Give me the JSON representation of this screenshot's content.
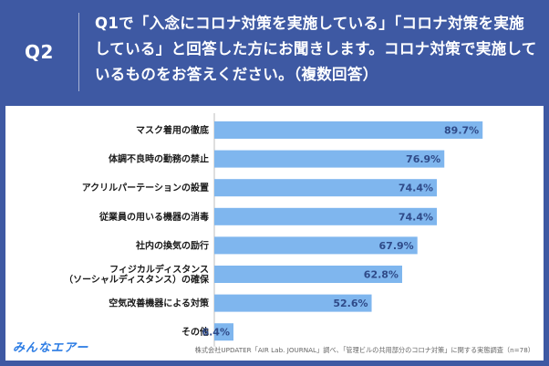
{
  "header": {
    "question_label": "Q2",
    "question_text": "Q1で「入念にコロナ対策を実施している」「コロナ対策を実施している」と回答した方にお聞きします。コロナ対策で実施しているものをお答えください。（複数回答）"
  },
  "chart_data": {
    "type": "bar",
    "orientation": "horizontal",
    "categories": [
      "マスク着用の徹底",
      "体調不良時の勤務の禁止",
      "アクリルパーテーションの設置",
      "従業員の用いる機器の消毒",
      "社内の換気の励行",
      "フィジカルディスタンス\n（ソーシャルディスタンス）の確保",
      "空気改善機器による対策",
      "その他"
    ],
    "values": [
      89.7,
      76.9,
      74.4,
      74.4,
      67.9,
      62.8,
      52.6,
      6.4
    ],
    "value_labels": [
      "89.7%",
      "76.9%",
      "74.4%",
      "74.4%",
      "67.9%",
      "62.8%",
      "52.6%",
      "6.4%"
    ],
    "xlim": [
      0,
      100
    ],
    "bar_color": "#7fb6ee",
    "label_color": "#2f4a88"
  },
  "footer": {
    "logo_text": "みんなエアー",
    "source": "株式会社UPDATER「AIR Lab. JOURNAL」調べ、「管理ビルの共用部分のコロナ対策」に関する実態調査（n=78）"
  }
}
